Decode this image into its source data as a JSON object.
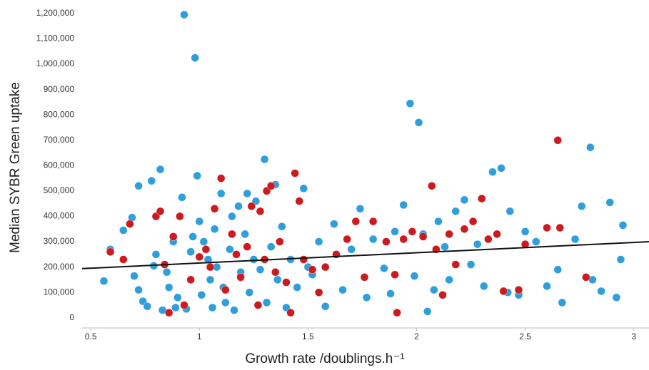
{
  "chart_data": {
    "type": "scatter",
    "y_label": "Median SYBR Green uptake",
    "x_label": "Growth rate /doublings.h⁻¹",
    "xlim": [
      0.46,
      3.07
    ],
    "ylim": [
      -40000,
      1225000
    ],
    "xticks": [
      0.5,
      1,
      1.5,
      2,
      2.5,
      3
    ],
    "yticks": [
      0,
      {
        "value": 100000,
        "label": "100,000"
      },
      {
        "value": 200000,
        "label": "200,000"
      },
      {
        "value": 300000,
        "label": "300,000"
      },
      {
        "value": 400000,
        "label": "400,000"
      },
      {
        "value": 500000,
        "label": "500,000"
      },
      {
        "value": 600000,
        "label": "600,000"
      },
      {
        "value": 700000,
        "label": "700,000"
      },
      {
        "value": 800000,
        "label": "800,000"
      },
      {
        "value": 900000,
        "label": "900,000"
      },
      {
        "value": 1000000,
        "label": "1,000,000"
      },
      {
        "value": 1100000,
        "label": "1,100,000"
      },
      {
        "value": 1200000,
        "label": "1,200,000"
      }
    ],
    "series": [
      {
        "color": "#2e9fdc",
        "x": [
          0.56,
          0.59,
          0.65,
          0.69,
          0.7,
          0.72,
          0.72,
          0.74,
          0.76,
          0.78,
          0.79,
          0.8,
          0.82,
          0.83,
          0.85,
          0.86,
          0.88,
          0.89,
          0.9,
          0.92,
          0.93,
          0.94,
          0.96,
          0.97,
          0.98,
          0.99,
          1.0,
          1.01,
          1.02,
          1.04,
          1.05,
          1.06,
          1.07,
          1.08,
          1.1,
          1.11,
          1.12,
          1.14,
          1.15,
          1.16,
          1.18,
          1.19,
          1.21,
          1.22,
          1.23,
          1.25,
          1.26,
          1.28,
          1.3,
          1.31,
          1.33,
          1.35,
          1.36,
          1.38,
          1.4,
          1.42,
          1.45,
          1.48,
          1.5,
          1.52,
          1.55,
          1.58,
          1.62,
          1.66,
          1.7,
          1.74,
          1.77,
          1.8,
          1.85,
          1.88,
          1.9,
          1.94,
          1.97,
          1.99,
          2.01,
          2.03,
          2.05,
          2.08,
          2.1,
          2.13,
          2.15,
          2.18,
          2.22,
          2.25,
          2.28,
          2.31,
          2.35,
          2.39,
          2.42,
          2.43,
          2.47,
          2.5,
          2.55,
          2.6,
          2.65,
          2.67,
          2.73,
          2.76,
          2.8,
          2.81,
          2.85,
          2.89,
          2.92,
          2.95,
          2.94
        ],
        "values": [
          145000,
          270000,
          345000,
          395000,
          165000,
          520000,
          110000,
          65000,
          45000,
          540000,
          205000,
          250000,
          585000,
          30000,
          180000,
          120000,
          300000,
          40000,
          80000,
          475000,
          1195000,
          35000,
          260000,
          320000,
          1025000,
          560000,
          380000,
          90000,
          300000,
          230000,
          150000,
          40000,
          350000,
          200000,
          490000,
          120000,
          60000,
          270000,
          400000,
          30000,
          440000,
          180000,
          330000,
          490000,
          100000,
          230000,
          460000,
          190000,
          625000,
          60000,
          280000,
          525000,
          150000,
          360000,
          40000,
          230000,
          120000,
          510000,
          200000,
          170000,
          300000,
          45000,
          370000,
          110000,
          270000,
          430000,
          80000,
          310000,
          195000,
          95000,
          340000,
          445000,
          845000,
          165000,
          770000,
          330000,
          25000,
          110000,
          380000,
          280000,
          150000,
          420000,
          465000,
          210000,
          290000,
          125000,
          575000,
          590000,
          100000,
          420000,
          90000,
          340000,
          300000,
          125000,
          190000,
          60000,
          310000,
          440000,
          672000,
          150000,
          105000,
          455000,
          80000,
          365000,
          230000
        ]
      },
      {
        "color": "#cc1a1f",
        "x": [
          0.59,
          0.65,
          0.68,
          0.8,
          0.82,
          0.84,
          0.86,
          0.88,
          0.91,
          0.93,
          0.96,
          1.0,
          1.03,
          1.05,
          1.07,
          1.1,
          1.12,
          1.15,
          1.17,
          1.19,
          1.22,
          1.24,
          1.27,
          1.28,
          1.3,
          1.31,
          1.33,
          1.35,
          1.37,
          1.4,
          1.42,
          1.44,
          1.46,
          1.48,
          1.52,
          1.55,
          1.58,
          1.63,
          1.68,
          1.72,
          1.76,
          1.8,
          1.86,
          1.9,
          1.91,
          1.94,
          1.98,
          2.03,
          2.07,
          2.09,
          2.12,
          2.15,
          2.18,
          2.22,
          2.26,
          2.3,
          2.33,
          2.37,
          2.4,
          2.47,
          2.5,
          2.6,
          2.66,
          2.65,
          2.78
        ],
        "values": [
          260000,
          230000,
          370000,
          400000,
          420000,
          210000,
          20000,
          320000,
          400000,
          50000,
          150000,
          240000,
          270000,
          200000,
          430000,
          550000,
          110000,
          330000,
          250000,
          160000,
          280000,
          440000,
          50000,
          420000,
          230000,
          500000,
          520000,
          180000,
          300000,
          140000,
          20000,
          570000,
          460000,
          230000,
          190000,
          100000,
          200000,
          250000,
          310000,
          380000,
          160000,
          380000,
          300000,
          170000,
          20000,
          310000,
          340000,
          320000,
          520000,
          270000,
          90000,
          330000,
          210000,
          350000,
          380000,
          470000,
          310000,
          330000,
          105000,
          110000,
          290000,
          355000,
          355000,
          700000,
          160000
        ]
      }
    ],
    "trendline": {
      "color": "#111111",
      "x": [
        0.46,
        3.07
      ],
      "values": [
        194000,
        300000
      ]
    }
  }
}
